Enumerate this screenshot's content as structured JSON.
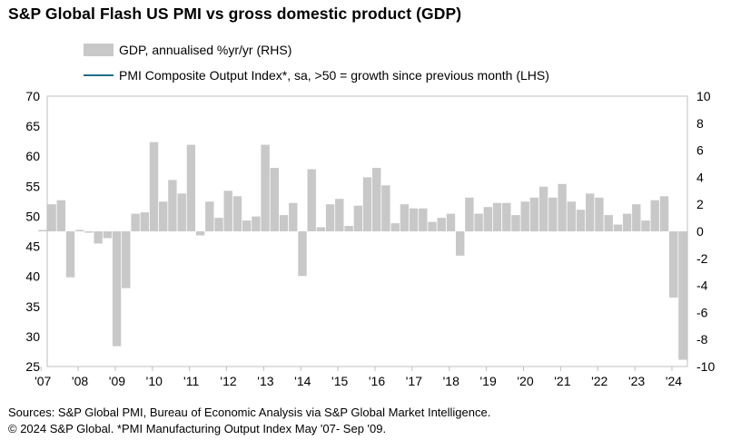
{
  "chart_data": {
    "type": "bar+line",
    "title": "S&P Global Flash US PMI vs gross domestic product (GDP)",
    "x_start": "2007-03",
    "x_end": "2024-06",
    "x_tick_labels": [
      "'07",
      "'08",
      "'09",
      "'10",
      "'11",
      "'12",
      "'13",
      "'14",
      "'15",
      "'16",
      "'17",
      "'18",
      "'19",
      "'20",
      "'21",
      "'22",
      "'23",
      "'24"
    ],
    "y_left": {
      "min": 25,
      "max": 70,
      "step": 5,
      "tick_labels": [
        "25",
        "30",
        "35",
        "40",
        "45",
        "50",
        "55",
        "60",
        "65",
        "70"
      ]
    },
    "y_right": {
      "min": -10,
      "max": 10,
      "step": 2,
      "tick_labels": [
        "-10",
        "-8",
        "-6",
        "-4",
        "-2",
        "0",
        "2",
        "4",
        "6",
        "8",
        "10"
      ]
    },
    "grid": false,
    "legend_position": "top",
    "series": [
      {
        "name": "GDP, annualised %yr/yr (RHS)",
        "kind": "bar",
        "axis": "right",
        "color": "#c8c8c8",
        "points": [
          [
            "2007-03",
            0.1
          ],
          [
            "2007-06",
            2.0
          ],
          [
            "2007-09",
            2.3
          ],
          [
            "2007-12",
            -3.4
          ],
          [
            "2008-03",
            0.1
          ],
          [
            "2008-06",
            -0.1
          ],
          [
            "2008-09",
            -0.9
          ],
          [
            "2008-12",
            -0.5
          ],
          [
            "2009-03",
            -8.5
          ],
          [
            "2009-06",
            -4.2
          ],
          [
            "2009-09",
            1.3
          ],
          [
            "2009-12",
            1.4
          ],
          [
            "2010-03",
            6.6
          ],
          [
            "2010-06",
            2.2
          ],
          [
            "2010-09",
            3.8
          ],
          [
            "2010-12",
            2.8
          ],
          [
            "2011-03",
            6.4
          ],
          [
            "2011-06",
            -0.3
          ],
          [
            "2011-09",
            2.2
          ],
          [
            "2011-12",
            1.0
          ],
          [
            "2012-03",
            3.0
          ],
          [
            "2012-06",
            2.6
          ],
          [
            "2012-09",
            0.8
          ],
          [
            "2012-12",
            1.1
          ],
          [
            "2013-03",
            6.4
          ],
          [
            "2013-06",
            4.7
          ],
          [
            "2013-09",
            1.2
          ],
          [
            "2013-12",
            2.1
          ],
          [
            "2014-03",
            -3.3
          ],
          [
            "2014-06",
            4.6
          ],
          [
            "2014-09",
            0.3
          ],
          [
            "2014-12",
            2.0
          ],
          [
            "2015-03",
            2.4
          ],
          [
            "2015-06",
            0.4
          ],
          [
            "2015-09",
            1.9
          ],
          [
            "2015-12",
            4.0
          ],
          [
            "2016-03",
            4.7
          ],
          [
            "2016-06",
            3.4
          ],
          [
            "2016-09",
            0.6
          ],
          [
            "2016-12",
            2.0
          ],
          [
            "2017-03",
            1.7
          ],
          [
            "2017-06",
            1.7
          ],
          [
            "2017-09",
            0.7
          ],
          [
            "2017-12",
            1.0
          ],
          [
            "2018-03",
            1.3
          ],
          [
            "2018-06",
            -1.8
          ],
          [
            "2018-09",
            2.5
          ],
          [
            "2018-12",
            1.3
          ],
          [
            "2019-03",
            1.8
          ],
          [
            "2019-06",
            2.1
          ],
          [
            "2019-09",
            2.1
          ],
          [
            "2019-12",
            1.2
          ],
          [
            "2020-03",
            2.2
          ],
          [
            "2020-06",
            2.5
          ],
          [
            "2020-09",
            3.3
          ],
          [
            "2020-12",
            2.5
          ],
          [
            "2021-03",
            3.5
          ],
          [
            "2021-06",
            2.2
          ],
          [
            "2021-09",
            1.6
          ],
          [
            "2021-12",
            2.8
          ],
          [
            "2022-03",
            2.5
          ],
          [
            "2022-06",
            1.2
          ],
          [
            "2022-09",
            0.5
          ],
          [
            "2022-12",
            1.3
          ],
          [
            "2023-03",
            2.0
          ],
          [
            "2023-06",
            0.8
          ],
          [
            "2023-09",
            2.3
          ],
          [
            "2023-12",
            2.6
          ],
          [
            "2024-03",
            -4.9
          ],
          [
            "2024-06",
            -9.5
          ]
        ]
      },
      {
        "name": "PMI Composite Output Index*, sa, >50 = growth since previous month (LHS)",
        "kind": "line",
        "axis": "left",
        "color": "#1f6f87",
        "points": []
      }
    ]
  },
  "footer": {
    "line1": "Sources: S&P Global PMI, Bureau of Economic Analysis via S&P Global Market Intelligence.",
    "line2": "© 2024 S&P Global.  *PMI Manufacturing Output Index May '07- Sep '09."
  }
}
